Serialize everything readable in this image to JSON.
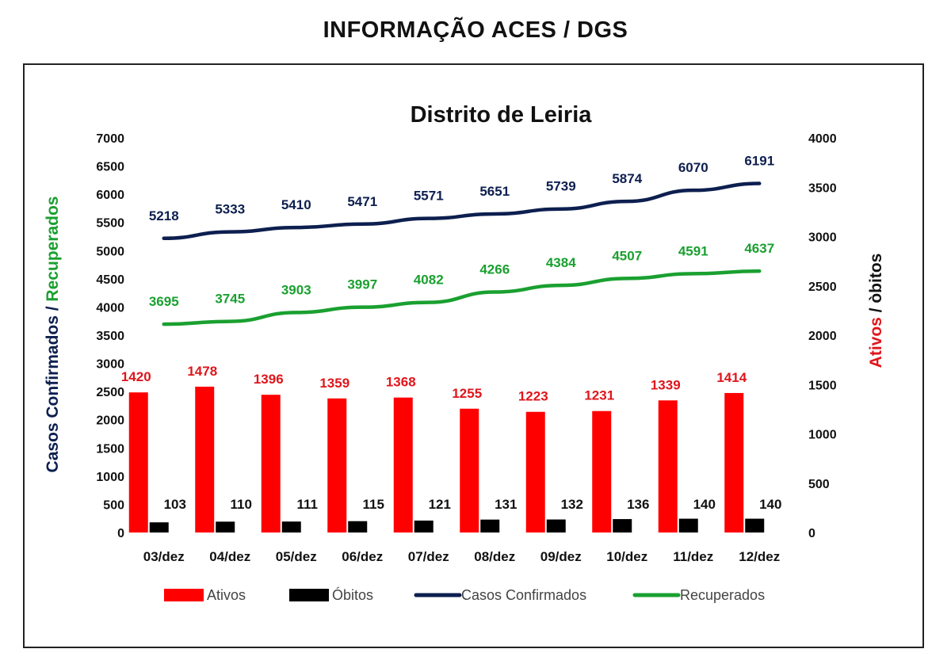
{
  "page_title": "INFORMAÇÃO ACES / DGS",
  "chart_data": {
    "type": "bar",
    "title": "Distrito de Leiria",
    "categories": [
      "03/dez",
      "04/dez",
      "05/dez",
      "06/dez",
      "07/dez",
      "08/dez",
      "09/dez",
      "10/dez",
      "11/dez",
      "12/dez"
    ],
    "ylabel_left_part1": "Casos Confirmados / ",
    "ylabel_left_part2": "Recuperados",
    "ylabel_right_part1": "Ativos",
    "ylabel_right_part2": " / òbitos",
    "y_left": {
      "min": 0,
      "max": 7000,
      "step": 500
    },
    "y_right": {
      "min": 0,
      "max": 4000,
      "step": 500
    },
    "grid": false,
    "legend_position": "bottom",
    "series": [
      {
        "name": "Ativos",
        "type": "bar",
        "axis": "right",
        "color": "#ff0000",
        "label_color": "#e0151b",
        "values": [
          1420,
          1478,
          1396,
          1359,
          1368,
          1255,
          1223,
          1231,
          1339,
          1414
        ]
      },
      {
        "name": "Óbitos",
        "type": "bar",
        "axis": "right",
        "color": "#000000",
        "label_color": "#111111",
        "values": [
          103,
          110,
          111,
          115,
          121,
          131,
          132,
          136,
          140,
          140
        ]
      },
      {
        "name": "Casos Confirmados",
        "type": "line",
        "axis": "left",
        "color": "#0d1f4f",
        "label_color": "#0d1f4f",
        "values": [
          5218,
          5333,
          5410,
          5471,
          5571,
          5651,
          5739,
          5874,
          6070,
          6191
        ]
      },
      {
        "name": "Recuperados",
        "type": "line",
        "axis": "left",
        "color": "#1aa030",
        "label_color": "#1aa030",
        "values": [
          3695,
          3745,
          3903,
          3997,
          4082,
          4266,
          4384,
          4507,
          4591,
          4637
        ]
      }
    ]
  }
}
